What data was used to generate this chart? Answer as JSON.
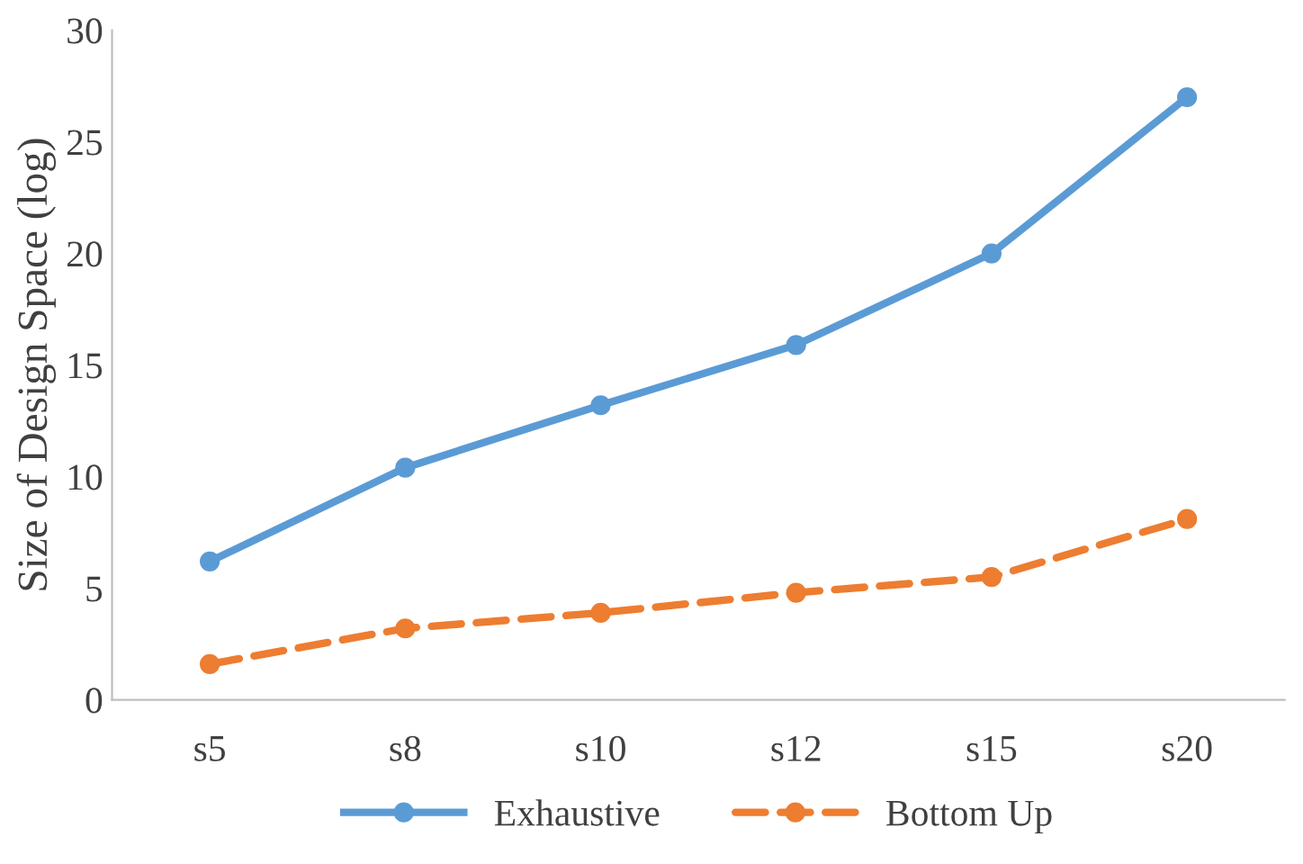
{
  "chart_data": {
    "type": "line",
    "ylabel": "Size of Design Space (log)",
    "categories": [
      "s5",
      "s8",
      "s10",
      "s12",
      "s15",
      "s20"
    ],
    "series": [
      {
        "name": "Exhaustive",
        "color": "#5b9bd5",
        "values": [
          6.2,
          10.4,
          13.2,
          15.9,
          20.0,
          27.0
        ],
        "line_style": "solid"
      },
      {
        "name": "Bottom Up",
        "color": "#ed7d31",
        "values": [
          1.6,
          3.2,
          3.9,
          4.8,
          5.5,
          8.1
        ],
        "line_style": "dashed"
      }
    ],
    "ylim": [
      0,
      30
    ],
    "yticks": [
      0,
      5,
      10,
      15,
      20,
      25,
      30
    ],
    "grid": false,
    "legend": "bottom",
    "marker": "circle"
  }
}
